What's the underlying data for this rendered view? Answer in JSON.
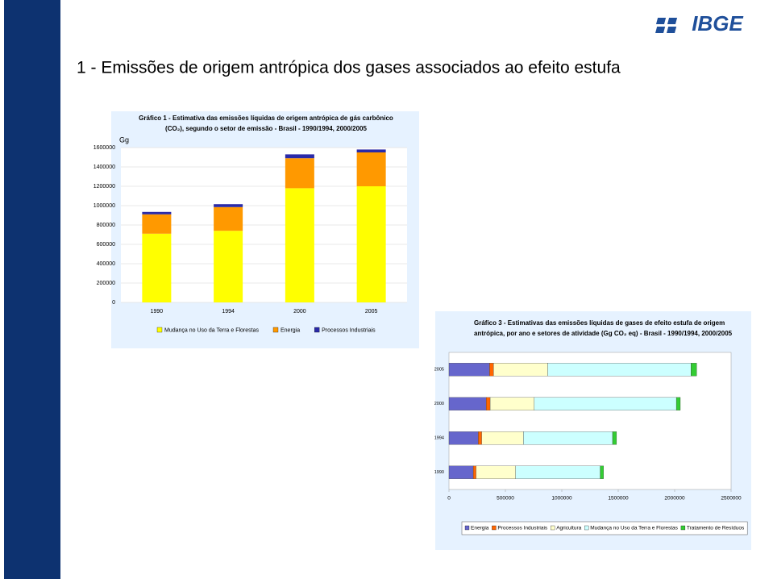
{
  "title": "1 - Emissões de origem antrópica dos gases associados ao efeito estufa",
  "logo": "IBGE",
  "chart_data": [
    {
      "type": "bar",
      "stacked": true,
      "horizontal": false,
      "title": [
        "Gráfico 1 - Estimativa das emissões líquidas de origem antrópica de gás carbônico",
        "(CO₂), segundo o setor de emissão - Brasil - 1990/1994, 2000/2005"
      ],
      "y_label": "Gg",
      "categories": [
        "1990",
        "1994",
        "2000",
        "2005"
      ],
      "series": [
        {
          "name": "Mudança no Uso da Terra e Florestas",
          "color": "#ffff00",
          "values": [
            710000,
            740000,
            1180000,
            1200000
          ]
        },
        {
          "name": "Energia",
          "color": "#ff9900",
          "values": [
            200000,
            245000,
            310000,
            350000
          ]
        },
        {
          "name": "Processos Industriais",
          "color": "#2a2aa8",
          "values": [
            25000,
            30000,
            40000,
            30000
          ]
        }
      ],
      "ylim": [
        0,
        1600000
      ],
      "yticks": [
        0,
        200000,
        400000,
        600000,
        800000,
        1000000,
        1200000,
        1400000,
        1600000
      ],
      "grid": true
    },
    {
      "type": "bar",
      "stacked": true,
      "horizontal": true,
      "title": [
        "Gráfico 3 - Estimativas das emissões líquidas de gases de efeito estufa de origem",
        "antrópica,  por ano e setores de atividade (Gg CO₂ eq) - Brasil - 1990/1994, 2000/2005"
      ],
      "categories": [
        "2005",
        "2000",
        "1994",
        "1990"
      ],
      "series": [
        {
          "name": "Energia",
          "color": "#6666cc",
          "values": [
            360000,
            330000,
            260000,
            215000
          ]
        },
        {
          "name": "Processos Industriais",
          "color": "#ff6600",
          "values": [
            35000,
            35000,
            30000,
            25000
          ]
        },
        {
          "name": "Agricultura",
          "color": "#ffffcc",
          "values": [
            480000,
            390000,
            370000,
            350000
          ]
        },
        {
          "name": "Mudança no Uso da Terra e Florestas",
          "color": "#ccffff",
          "values": [
            1270000,
            1260000,
            790000,
            750000
          ]
        },
        {
          "name": "Tratamento de Resíduos",
          "color": "#33cc33",
          "values": [
            50000,
            35000,
            35000,
            30000
          ]
        }
      ],
      "xlim": [
        0,
        2500000
      ],
      "xticks": [
        0,
        500000,
        1000000,
        1500000,
        2000000,
        2500000
      ],
      "grid": false
    }
  ]
}
